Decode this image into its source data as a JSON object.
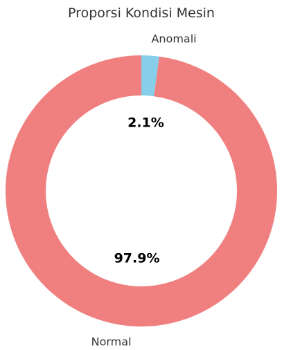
{
  "chart_data": {
    "type": "pie",
    "variant": "donut",
    "title": "Proporsi Kondisi Mesin",
    "slices": [
      {
        "label": "Anomali",
        "value": 2.1,
        "percent_label": "2.1%",
        "color": "#87ceeb"
      },
      {
        "label": "Normal",
        "value": 97.9,
        "percent_label": "97.9%",
        "color": "#f08080"
      }
    ],
    "start_angle": "top",
    "direction": "clockwise",
    "legend": "none"
  }
}
